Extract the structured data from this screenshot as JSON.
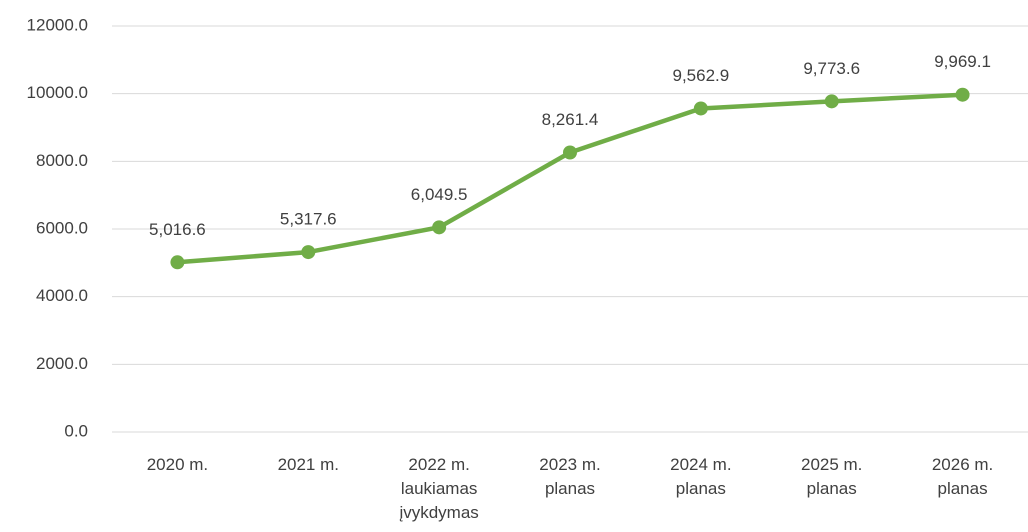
{
  "chart_data": {
    "type": "line",
    "categories": [
      "2020 m.",
      "2021 m.",
      "2022 m. laukiamas įvykdymas",
      "2023 m. planas",
      "2024 m. planas",
      "2025 m. planas",
      "2026 m. planas"
    ],
    "series": [
      {
        "color": "#70ad47",
        "values": [
          5016.6,
          5317.6,
          6049.5,
          8261.4,
          9562.9,
          9773.6,
          9969.1
        ],
        "value_labels": [
          "5,016.6",
          "5,317.6",
          "6,049.5",
          "8,261.4",
          "9,562.9",
          "9,773.6",
          "9,969.1"
        ]
      }
    ],
    "ylim": [
      0,
      12000
    ],
    "yticks": [
      {
        "value": 0,
        "label": "0.0"
      },
      {
        "value": 2000,
        "label": "2000.0"
      },
      {
        "value": 4000,
        "label": "4000.0"
      },
      {
        "value": 6000,
        "label": "6000.0"
      },
      {
        "value": 8000,
        "label": "8000.0"
      },
      {
        "value": 10000,
        "label": "10000.0"
      },
      {
        "value": 12000,
        "label": "12000.0"
      }
    ],
    "grid": true
  }
}
